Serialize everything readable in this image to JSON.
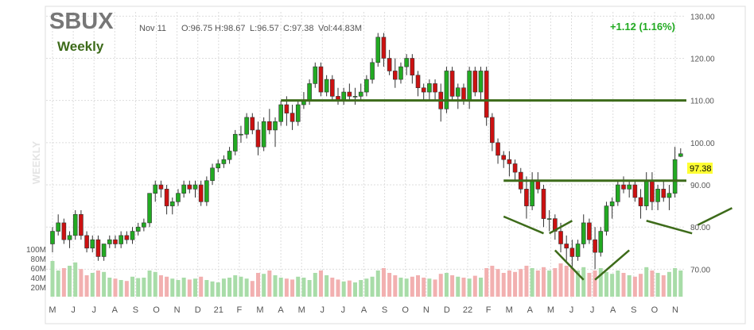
{
  "header": {
    "symbol": "SBUX",
    "date": "Nov 11",
    "open": "O:96.75",
    "high": "H:98.67",
    "low": "L:96.57",
    "close": "C:97.38",
    "volume": "Vol:44.83M",
    "change": "+1.12 (1.16%)",
    "period": "Weekly",
    "watermark": "WEEKLY"
  },
  "colors": {
    "up": "#22aa22",
    "down": "#cc1111",
    "vol_up": "#a8dca8",
    "vol_down": "#f2b0b0",
    "trendline": "#3d6b1a",
    "symbol": "#777777",
    "period": "#3d6b1a",
    "change": "#22aa22",
    "price_tag_bg": "#ffff33"
  },
  "chart_data": {
    "type": "candlestick",
    "ylim": [
      65,
      131
    ],
    "price_ticks": [
      "130.00",
      "120.00",
      "110.00",
      "100.00",
      "90.00",
      "80.00",
      "70.00"
    ],
    "volume_ticks": [
      "100M",
      "80M",
      "60M",
      "40M",
      "20M"
    ],
    "month_labels": [
      "M",
      "J",
      "J",
      "A",
      "S",
      "O",
      "N",
      "D",
      "21",
      "F",
      "M",
      "A",
      "M",
      "J",
      "J",
      "A",
      "S",
      "O",
      "N",
      "D",
      "22",
      "F",
      "M",
      "A",
      "M",
      "J",
      "J",
      "A",
      "S",
      "O",
      "N"
    ],
    "last_price_label": "97.38",
    "ohlc": [
      [
        76,
        80,
        74,
        79
      ],
      [
        79,
        83,
        78,
        81
      ],
      [
        81,
        82,
        76,
        77
      ],
      [
        77,
        79,
        75,
        78
      ],
      [
        78,
        84,
        77,
        83
      ],
      [
        83,
        84,
        77,
        78
      ],
      [
        78,
        79,
        74,
        75
      ],
      [
        75,
        78,
        74,
        77
      ],
      [
        77,
        78,
        72,
        73
      ],
      [
        73,
        76,
        72,
        76
      ],
      [
        76,
        78,
        75,
        77
      ],
      [
        77,
        78,
        75,
        76
      ],
      [
        76,
        79,
        75,
        78
      ],
      [
        78,
        79,
        76,
        77
      ],
      [
        77,
        80,
        76,
        79
      ],
      [
        79,
        81,
        78,
        80
      ],
      [
        80,
        82,
        79,
        81
      ],
      [
        81,
        88,
        80,
        88
      ],
      [
        88,
        91,
        86,
        90
      ],
      [
        90,
        91,
        87,
        89
      ],
      [
        89,
        90,
        83,
        85
      ],
      [
        85,
        87,
        83,
        86
      ],
      [
        86,
        89,
        85,
        88
      ],
      [
        88,
        91,
        87,
        90
      ],
      [
        90,
        91,
        88,
        89
      ],
      [
        89,
        91,
        87,
        90
      ],
      [
        90,
        91,
        85,
        86
      ],
      [
        86,
        92,
        85,
        91
      ],
      [
        91,
        95,
        90,
        94
      ],
      [
        94,
        96,
        93,
        95
      ],
      [
        95,
        97,
        94,
        96
      ],
      [
        96,
        99,
        95,
        98
      ],
      [
        98,
        103,
        97,
        102
      ],
      [
        102,
        104,
        100,
        102
      ],
      [
        102,
        107,
        101,
        106
      ],
      [
        106,
        107,
        102,
        103
      ],
      [
        103,
        105,
        97,
        99
      ],
      [
        99,
        106,
        98,
        105
      ],
      [
        105,
        108,
        102,
        103
      ],
      [
        103,
        106,
        99,
        105
      ],
      [
        105,
        110,
        104,
        109
      ],
      [
        109,
        111,
        104,
        107
      ],
      [
        107,
        109,
        103,
        105
      ],
      [
        105,
        110,
        104,
        109
      ],
      [
        109,
        112,
        108,
        110
      ],
      [
        110,
        115,
        109,
        114
      ],
      [
        114,
        119,
        113,
        118
      ],
      [
        118,
        119,
        111,
        112
      ],
      [
        112,
        116,
        111,
        115
      ],
      [
        115,
        116,
        110,
        111
      ],
      [
        111,
        113,
        109,
        110
      ],
      [
        110,
        113,
        109,
        112
      ],
      [
        112,
        114,
        110,
        111
      ],
      [
        111,
        113,
        109,
        111
      ],
      [
        111,
        114,
        110,
        112
      ],
      [
        112,
        116,
        111,
        115
      ],
      [
        115,
        120,
        114,
        119
      ],
      [
        119,
        126,
        118,
        125
      ],
      [
        125,
        126,
        118,
        120
      ],
      [
        120,
        122,
        116,
        117
      ],
      [
        117,
        120,
        113,
        115
      ],
      [
        115,
        119,
        114,
        118
      ],
      [
        118,
        121,
        116,
        120
      ],
      [
        120,
        121,
        114,
        116
      ],
      [
        116,
        117,
        111,
        113
      ],
      [
        113,
        114,
        110,
        112
      ],
      [
        112,
        115,
        110,
        114
      ],
      [
        114,
        115,
        110,
        112
      ],
      [
        112,
        114,
        105,
        108
      ],
      [
        108,
        118,
        107,
        117
      ],
      [
        117,
        118,
        110,
        111
      ],
      [
        111,
        114,
        108,
        113
      ],
      [
        113,
        114,
        109,
        110
      ],
      [
        110,
        118,
        108,
        117
      ],
      [
        117,
        118,
        111,
        112
      ],
      [
        112,
        118,
        110,
        117
      ],
      [
        117,
        118,
        104,
        106
      ],
      [
        106,
        107,
        98,
        100
      ],
      [
        100,
        101,
        95,
        97
      ],
      [
        97,
        98,
        94,
        96
      ],
      [
        96,
        98,
        92,
        95
      ],
      [
        95,
        96,
        91,
        93
      ],
      [
        93,
        94,
        88,
        89
      ],
      [
        89,
        92,
        82,
        85
      ],
      [
        85,
        93,
        84,
        91
      ],
      [
        91,
        93,
        88,
        89
      ],
      [
        89,
        90,
        80,
        82
      ],
      [
        82,
        84,
        79,
        82
      ],
      [
        82,
        83,
        77,
        79
      ],
      [
        79,
        81,
        74,
        76
      ],
      [
        76,
        78,
        72,
        75
      ],
      [
        75,
        77,
        70,
        73
      ],
      [
        73,
        77,
        72,
        76
      ],
      [
        76,
        83,
        75,
        81
      ],
      [
        81,
        82,
        76,
        77
      ],
      [
        77,
        80,
        70,
        74
      ],
      [
        74,
        80,
        73,
        79
      ],
      [
        79,
        86,
        78,
        85
      ],
      [
        85,
        87,
        82,
        86
      ],
      [
        86,
        91,
        85,
        90
      ],
      [
        90,
        92,
        88,
        89
      ],
      [
        89,
        91,
        87,
        90
      ],
      [
        90,
        91,
        86,
        87
      ],
      [
        87,
        89,
        82,
        85
      ],
      [
        85,
        93,
        84,
        91
      ],
      [
        91,
        93,
        84,
        86
      ],
      [
        86,
        90,
        84,
        89
      ],
      [
        89,
        91,
        86,
        87
      ],
      [
        87,
        90,
        84,
        88
      ],
      [
        88,
        99,
        87,
        96
      ],
      [
        96.75,
        98.67,
        96.57,
        97.38
      ]
    ],
    "volume": [
      75,
      55,
      60,
      65,
      72,
      58,
      45,
      50,
      55,
      52,
      40,
      38,
      35,
      33,
      42,
      39,
      40,
      55,
      52,
      45,
      42,
      38,
      35,
      40,
      36,
      38,
      42,
      35,
      32,
      30,
      38,
      40,
      45,
      42,
      38,
      33,
      50,
      48,
      55,
      45,
      40,
      38,
      36,
      42,
      40,
      35,
      50,
      55,
      45,
      40,
      36,
      32,
      34,
      30,
      35,
      38,
      42,
      55,
      60,
      50,
      45,
      40,
      38,
      42,
      45,
      40,
      38,
      36,
      48,
      50,
      45,
      42,
      40,
      38,
      44,
      40,
      60,
      65,
      58,
      50,
      55,
      52,
      58,
      65,
      60,
      55,
      62,
      55,
      60,
      70,
      65,
      60,
      55,
      62,
      50,
      55,
      60,
      52,
      48,
      55,
      50,
      45,
      42,
      48,
      62,
      55,
      50,
      45,
      52,
      60,
      55
    ],
    "hlines": [
      {
        "value": 110.0,
        "x_from": 40,
        "x_to": 111
      },
      {
        "value": 91.0,
        "x_from": 79,
        "x_to": 111
      }
    ],
    "diag_lines": [
      [
        79,
        82.5,
        86,
        78.5
      ],
      [
        87,
        78.5,
        91,
        81.5
      ],
      [
        88,
        74.5,
        93,
        67.5
      ],
      [
        95,
        67.5,
        101,
        74.5
      ],
      [
        104,
        81.5,
        112,
        78.5
      ],
      [
        113,
        80.5,
        119,
        84.5
      ]
    ]
  }
}
